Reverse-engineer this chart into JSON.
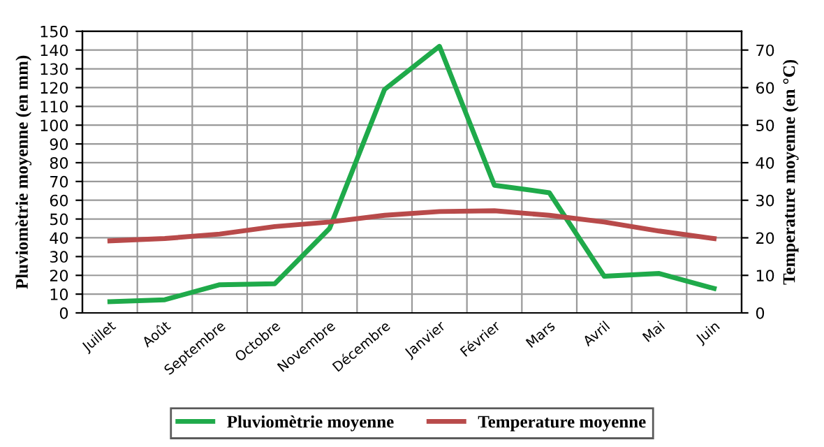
{
  "chart_data": {
    "type": "line",
    "ylabel": "Pluviomètrie moyenne (en mm)",
    "y2label": "Temperature moyenne (en °C)",
    "categories": [
      "Juillet",
      "Août",
      "Septembre",
      "Octobre",
      "Novembre",
      "Décembre",
      "Janvier",
      "Février",
      "Mars",
      "Avril",
      "Mai",
      "Juin"
    ],
    "series": [
      {
        "name": "Pluviomètrie moyenne",
        "color": "#1faa4a",
        "values": [
          6,
          7,
          15,
          15.5,
          45,
          119,
          142,
          68,
          64,
          19.5,
          21,
          13
        ]
      },
      {
        "name": "Temperature moyenne",
        "color": "#b84a4a",
        "axis": "y2",
        "values": [
          19.2,
          19.8,
          21,
          23,
          24.2,
          26,
          27,
          27.2,
          26,
          24.2,
          21.8,
          19.8
        ]
      }
    ],
    "ylim": [
      0,
      150
    ],
    "yticks": [
      0,
      10,
      20,
      30,
      40,
      50,
      60,
      70,
      80,
      90,
      100,
      110,
      120,
      130,
      140,
      150
    ],
    "y2lim": [
      0,
      75
    ],
    "y2ticks": [
      0,
      10,
      20,
      30,
      40,
      50,
      60,
      70
    ],
    "grid": true,
    "legend": "bottom",
    "marker": "none",
    "line_style": "solid"
  }
}
